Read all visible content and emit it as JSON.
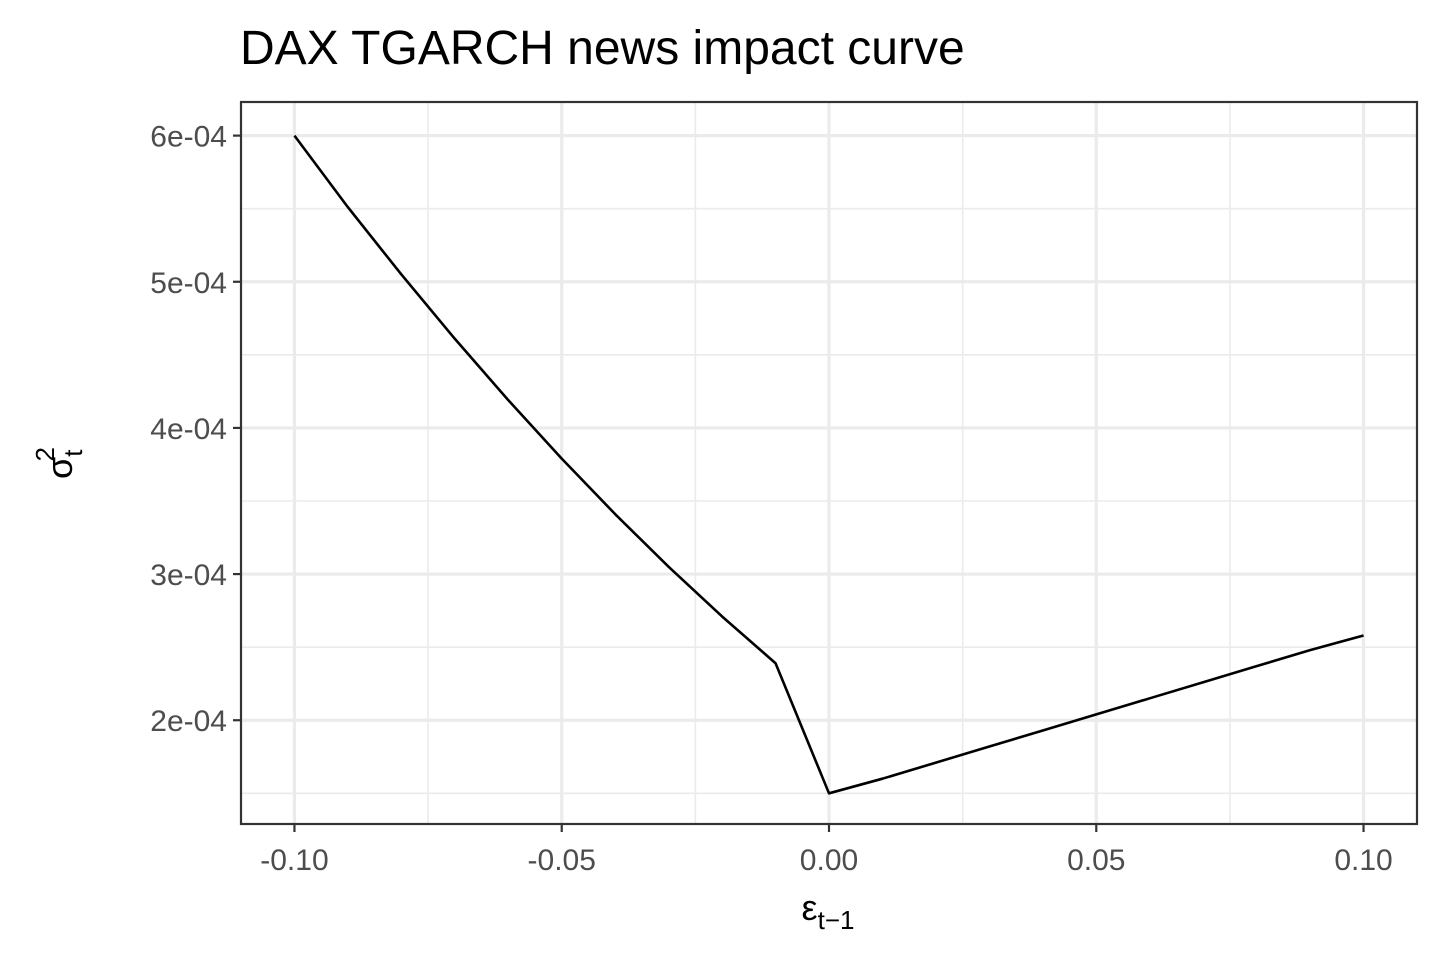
{
  "chart_data": {
    "type": "line",
    "title": "DAX TGARCH news impact curve",
    "xlabel": {
      "base": "ε",
      "subscript": "t−1"
    },
    "ylabel": {
      "base": "σ",
      "subscript": "t",
      "superscript": "2"
    },
    "xlim": [
      -0.11,
      0.11
    ],
    "ylim": [
      0.000129,
      0.000623
    ],
    "x_ticks": [
      -0.1,
      -0.05,
      0.0,
      0.05,
      0.1
    ],
    "x_tick_labels": [
      "-0.10",
      "-0.05",
      "0.00",
      "0.05",
      "0.10"
    ],
    "x_minor_ticks": [
      -0.075,
      -0.025,
      0.025,
      0.075
    ],
    "y_ticks": [
      0.0002,
      0.0003,
      0.0004,
      0.0005,
      0.0006
    ],
    "y_tick_labels": [
      "2e-04",
      "3e-04",
      "4e-04",
      "5e-04",
      "6e-04"
    ],
    "y_minor_ticks": [
      0.00015,
      0.00025,
      0.00035,
      0.00045,
      0.00055
    ],
    "grid": true,
    "series": [
      {
        "color": "#000000",
        "x": [
          -0.1,
          -0.09,
          -0.08,
          -0.07,
          -0.06,
          -0.05,
          -0.04,
          -0.03,
          -0.02,
          -0.01,
          0.0,
          0.01,
          0.02,
          0.03,
          0.04,
          0.05,
          0.06,
          0.07,
          0.08,
          0.09,
          0.1
        ],
        "y": [
          0.0006,
          0.000551,
          0.000505,
          0.000461,
          0.000419,
          0.000379,
          0.000341,
          0.000305,
          0.000271,
          0.000239,
          0.00015,
          0.00016,
          0.000171,
          0.000182,
          0.000193,
          0.000204,
          0.000215,
          0.000226,
          0.000237,
          0.000248,
          0.000258
        ]
      }
    ]
  }
}
